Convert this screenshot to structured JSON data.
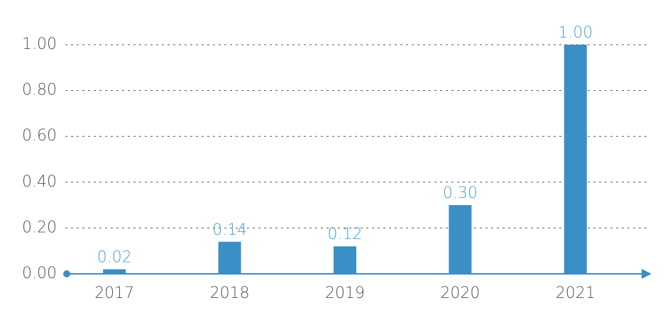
{
  "chart_data": {
    "type": "bar",
    "categories": [
      "2017",
      "2018",
      "2019",
      "2020",
      "2021"
    ],
    "values": [
      0.02,
      0.14,
      0.12,
      0.3,
      1.0
    ],
    "value_labels": [
      "0.02",
      "0.14",
      "0.12",
      "0.30",
      "1.00"
    ],
    "color": "#3a8fc6",
    "ylim": [
      0,
      1
    ],
    "yticks": [
      {
        "value": 0,
        "label": "0.00"
      },
      {
        "value": 0.2,
        "label": "0.20"
      },
      {
        "value": 0.4,
        "label": "0.40"
      },
      {
        "value": 0.6,
        "label": "0.60"
      },
      {
        "value": 0.8,
        "label": "0.80"
      },
      {
        "value": 1,
        "label": "1.00"
      }
    ],
    "grid": true
  }
}
